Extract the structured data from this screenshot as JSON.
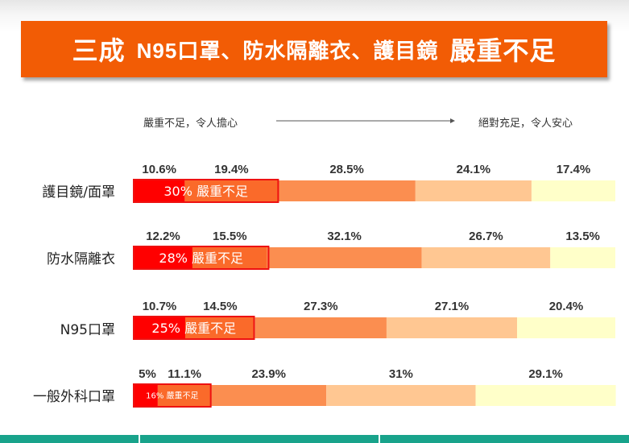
{
  "title": {
    "prefix": "三成",
    "items": "N95口罩、防水隔離衣、護目鏡",
    "suffix": "嚴重不足"
  },
  "scale": {
    "left_label": "嚴重不足，令人擔心",
    "right_label": "絕對充足，令人安心"
  },
  "colors": {
    "banner": "#f25c05",
    "seg1": "#ff0000",
    "seg2": "#fa6a2a",
    "seg3": "#fb8e50",
    "seg4": "#ffc792",
    "seg5": "#ffffc9",
    "highlight_box": "#ff0000",
    "bottom_bar": "#18a38b"
  },
  "chart_data": {
    "type": "bar",
    "stacked": true,
    "orientation": "horizontal",
    "categories": [
      "護目鏡/面罩",
      "防水隔離衣",
      "N95口罩",
      "一般外科口罩"
    ],
    "series": [
      {
        "values": [
          10.6,
          12.2,
          10.7,
          5
        ]
      },
      {
        "values": [
          19.4,
          15.5,
          14.5,
          11.1
        ]
      },
      {
        "values": [
          28.5,
          32.1,
          27.3,
          23.9
        ]
      },
      {
        "values": [
          24.1,
          26.7,
          27.1,
          31
        ]
      },
      {
        "values": [
          17.4,
          13.5,
          20.4,
          29.1
        ]
      }
    ],
    "value_labels": [
      [
        "10.6%",
        "19.4%",
        "28.5%",
        "24.1%",
        "17.4%"
      ],
      [
        "12.2%",
        "15.5%",
        "32.1%",
        "26.7%",
        "13.5%"
      ],
      [
        "10.7%",
        "14.5%",
        "27.3%",
        "27.1%",
        "20.4%"
      ],
      [
        "5%",
        "11.1%",
        "23.9%",
        "31%",
        "29.1%"
      ]
    ],
    "highlight": {
      "values": [
        30,
        28,
        25,
        16
      ],
      "labels": [
        "30% 嚴重不足",
        "28% 嚴重不足",
        "25% 嚴重不足",
        "16% 嚴重不足"
      ]
    },
    "xlim": [
      0,
      100
    ]
  }
}
